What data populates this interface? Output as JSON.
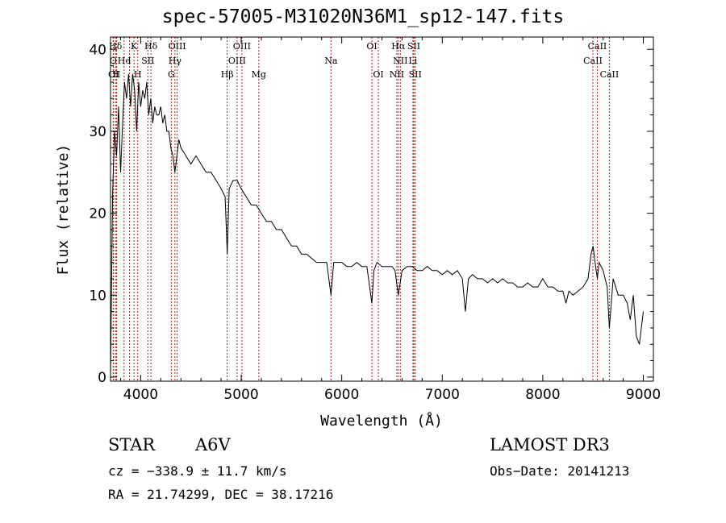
{
  "chart_data": {
    "type": "line",
    "title": "spec-57005-M31020N36M1_sp12-147.fits",
    "xlabel": "Wavelength (Å)",
    "ylabel": "Flux (relative)",
    "xlim": [
      3700,
      9100
    ],
    "ylim": [
      -0.5,
      41.5
    ],
    "xticks": [
      4000,
      5000,
      6000,
      7000,
      8000,
      9000
    ],
    "yticks": [
      0,
      10,
      20,
      30,
      40
    ],
    "line_color": "#000000",
    "marker_color": "#b22222",
    "series": [
      {
        "name": "flux",
        "x": [
          3700,
          3720,
          3740,
          3760,
          3780,
          3800,
          3820,
          3840,
          3860,
          3880,
          3900,
          3920,
          3940,
          3960,
          3980,
          4000,
          4020,
          4040,
          4060,
          4080,
          4100,
          4120,
          4140,
          4160,
          4180,
          4200,
          4220,
          4240,
          4260,
          4280,
          4300,
          4320,
          4340,
          4360,
          4380,
          4400,
          4450,
          4500,
          4550,
          4600,
          4650,
          4700,
          4750,
          4800,
          4840,
          4861,
          4880,
          4920,
          4960,
          5000,
          5050,
          5100,
          5150,
          5200,
          5250,
          5300,
          5350,
          5400,
          5450,
          5500,
          5550,
          5600,
          5650,
          5700,
          5750,
          5800,
          5850,
          5893,
          5920,
          5950,
          6000,
          6050,
          6100,
          6150,
          6200,
          6250,
          6300,
          6320,
          6350,
          6400,
          6450,
          6500,
          6530,
          6563,
          6600,
          6650,
          6700,
          6750,
          6800,
          6850,
          6900,
          6950,
          7000,
          7050,
          7100,
          7150,
          7200,
          7230,
          7260,
          7300,
          7350,
          7400,
          7450,
          7500,
          7550,
          7600,
          7650,
          7700,
          7750,
          7800,
          7850,
          7900,
          7950,
          8000,
          8050,
          8100,
          8150,
          8200,
          8230,
          8260,
          8300,
          8350,
          8400,
          8450,
          8480,
          8500,
          8520,
          8542,
          8560,
          8600,
          8640,
          8662,
          8700,
          8750,
          8800,
          8840,
          8870,
          8900,
          8930,
          8960,
          9000
        ],
        "y": [
          0,
          22,
          30,
          27,
          33,
          25,
          31,
          36,
          34,
          37,
          33,
          37,
          35,
          30,
          36,
          33,
          35,
          34,
          36,
          32,
          34,
          31,
          33,
          32,
          32,
          33,
          31,
          32,
          30,
          30,
          28,
          27,
          25,
          27,
          29,
          28,
          27,
          26,
          27,
          26,
          25,
          25,
          24,
          23,
          22,
          15,
          23,
          24,
          24,
          23,
          22,
          21,
          21,
          20,
          19,
          19,
          18,
          18,
          17,
          16,
          16,
          15,
          15,
          14.5,
          14,
          14,
          14,
          10,
          14,
          14,
          14,
          13.5,
          13.5,
          14,
          13.5,
          13.5,
          9,
          13,
          14,
          13.5,
          13.5,
          13.5,
          13,
          10,
          13,
          13.5,
          13.5,
          13,
          13,
          13.5,
          13,
          13,
          12.5,
          13,
          12.5,
          13,
          12,
          8,
          12,
          12.5,
          12,
          12,
          11.5,
          12,
          11.5,
          12,
          11.5,
          11.5,
          11,
          11,
          11.5,
          11,
          11,
          12,
          11,
          11,
          10.5,
          10.5,
          9,
          10.5,
          10,
          10.5,
          11,
          12,
          15,
          16,
          14,
          12,
          14,
          13,
          11,
          6,
          12,
          10,
          10,
          9,
          7,
          10,
          5,
          4,
          8
        ]
      }
    ],
    "lines": [
      {
        "label": "Hδ",
        "x": 3750,
        "row": 0
      },
      {
        "label": "K",
        "x": 3934,
        "row": 0
      },
      {
        "label": "Hδ",
        "x": 4102,
        "row": 0
      },
      {
        "label": "OIII",
        "x": 4363,
        "row": 0
      },
      {
        "label": "OIII",
        "x": 5007,
        "row": 0
      },
      {
        "label": "OI",
        "x": 6300,
        "row": 0
      },
      {
        "label": "Hα",
        "x": 6563,
        "row": 0
      },
      {
        "label": "SII",
        "x": 6717,
        "row": 0
      },
      {
        "label": "CaII",
        "x": 8542,
        "row": 0
      },
      {
        "label": "O",
        "x": 3727,
        "row": 1
      },
      {
        "label": "He",
        "x": 3835,
        "row": 1
      },
      {
        "label": "I",
        "x": 3889,
        "row": 1
      },
      {
        "label": "SII",
        "x": 4072,
        "row": 1
      },
      {
        "label": "Hγ",
        "x": 4341,
        "row": 1
      },
      {
        "label": "OIII",
        "x": 4959,
        "row": 1
      },
      {
        "label": "Na",
        "x": 5893,
        "row": 1
      },
      {
        "label": "NII",
        "x": 6583,
        "row": 1
      },
      {
        "label": "Li",
        "x": 6708,
        "row": 1
      },
      {
        "label": "CaII",
        "x": 8498,
        "row": 1
      },
      {
        "label": "OI",
        "x": 3730,
        "row": 2
      },
      {
        "label": "H",
        "x": 3760,
        "row": 2
      },
      {
        "label": "H",
        "x": 3971,
        "row": 2
      },
      {
        "label": "G",
        "x": 4305,
        "row": 2
      },
      {
        "label": "Hβ",
        "x": 4861,
        "row": 2
      },
      {
        "label": "Mg",
        "x": 5175,
        "row": 2
      },
      {
        "label": "OI",
        "x": 6364,
        "row": 2
      },
      {
        "label": "NII",
        "x": 6548,
        "row": 2
      },
      {
        "label": "SII",
        "x": 6731,
        "row": 2
      },
      {
        "label": "CaII",
        "x": 8662,
        "row": 2
      }
    ]
  },
  "info": {
    "object_type": "STAR",
    "subclass": "A6V",
    "survey": "LAMOST DR3",
    "redshift_line": "cz = −338.9 ± 11.7 km/s",
    "obs_date_line": "Obs−Date: 20141213",
    "coords_line": "RA =  21.74299, DEC =  38.17216"
  }
}
